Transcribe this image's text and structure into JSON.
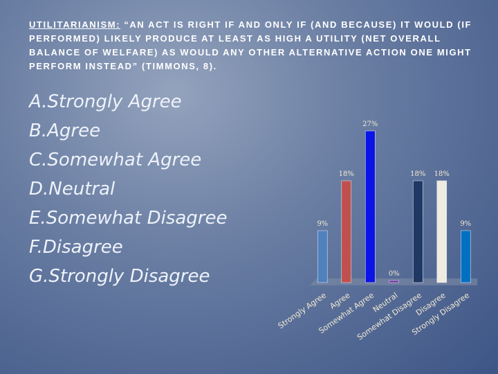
{
  "slide": {
    "heading_label": "UTILITARIANISM:",
    "heading_text": "“AN ACT IS RIGHT IF AND ONLY IF (AND BECAUSE) IT WOULD (IF PERFORMED) LIKELY PRODUCE AT LEAST AS HIGH A UTILITY (NET OVERALL BALANCE OF WELFARE) AS WOULD ANY OTHER ALTERNATIVE ACTION ONE MIGHT PERFORM INSTEAD” (TIMMONS, 8).",
    "items": [
      {
        "letter": "A.",
        "text": "Strongly Agree"
      },
      {
        "letter": "B.",
        "text": "Agree"
      },
      {
        "letter": "C.",
        "text": "Somewhat Agree"
      },
      {
        "letter": "D.",
        "text": "Neutral"
      },
      {
        "letter": "E.",
        "text": "Somewhat Disagree"
      },
      {
        "letter": "F.",
        "text": "Disagree"
      },
      {
        "letter": "G.",
        "text": "Strongly Disagree"
      }
    ]
  },
  "chart_data": {
    "type": "bar",
    "categories": [
      "Strongly Agree",
      "Agree",
      "Somewhat Agree",
      "Neutral",
      "Somewhat Disagree",
      "Disagree",
      "Strongly Disagree"
    ],
    "values": [
      9,
      18,
      27,
      0,
      18,
      18,
      9
    ],
    "value_labels": [
      "9%",
      "18%",
      "27%",
      "0%",
      "18%",
      "18%",
      "9%"
    ],
    "colors": [
      "#4f81bd",
      "#c0504d",
      "#0a14e6",
      "#7030a0",
      "#1f3864",
      "#eeece1",
      "#0070c0"
    ]
  }
}
